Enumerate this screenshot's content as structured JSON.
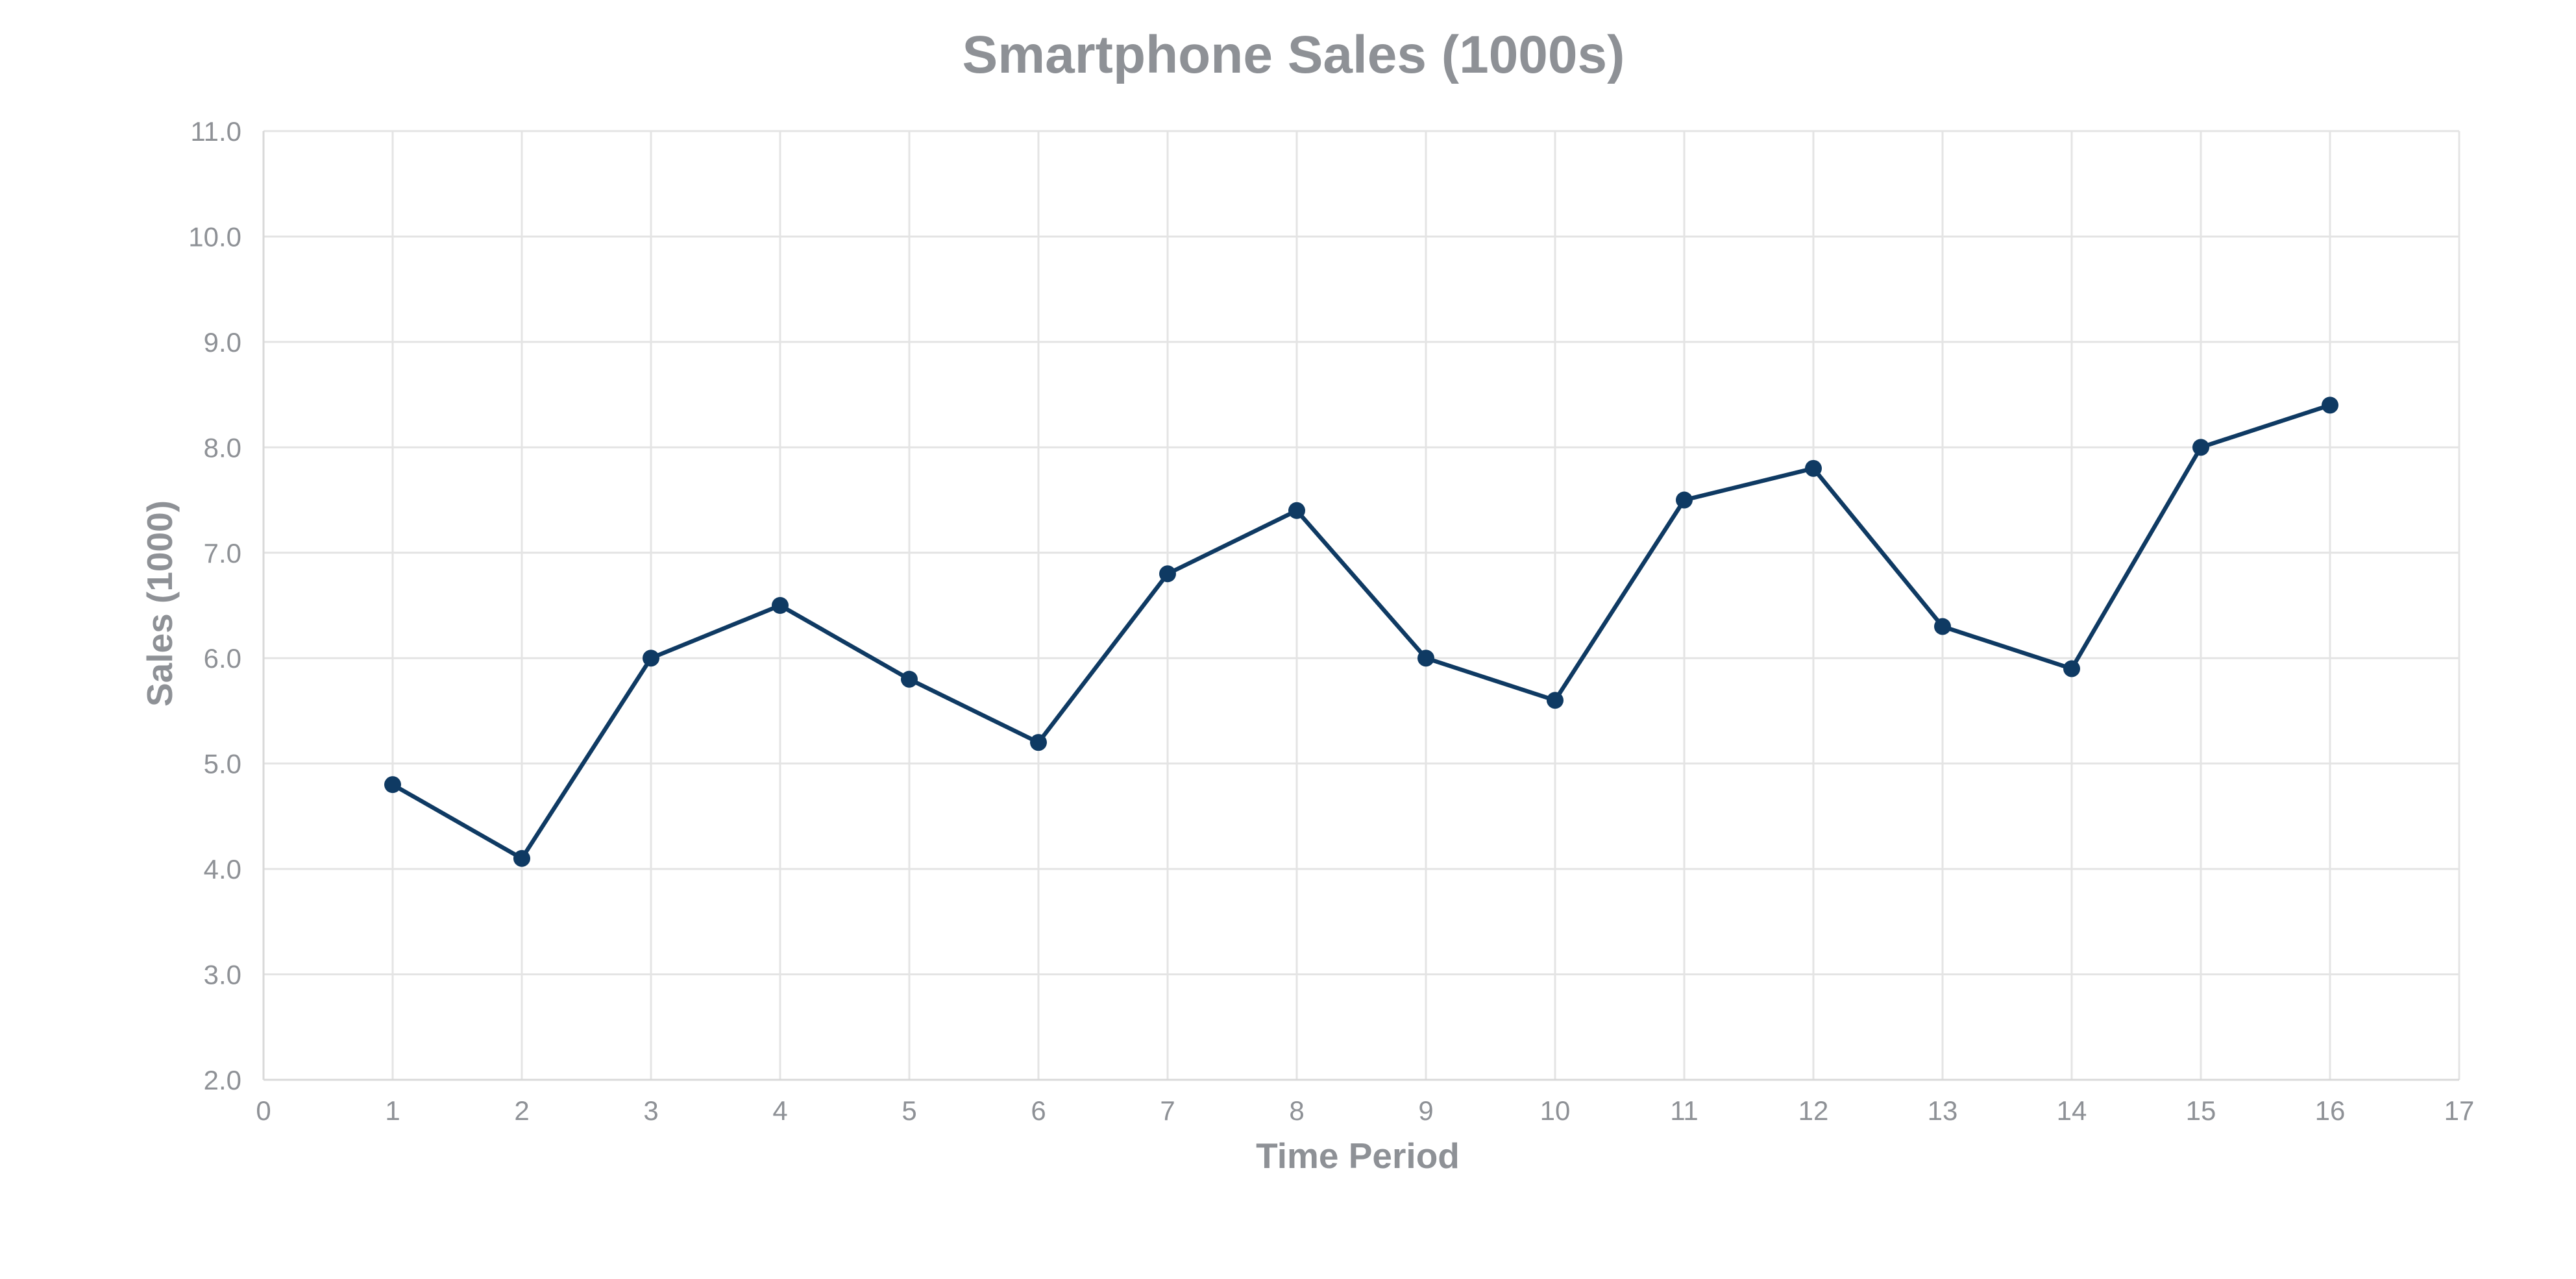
{
  "chart_data": {
    "type": "line",
    "title": "Smartphone Sales (1000s)",
    "xlabel": "Time Period",
    "ylabel": "Sales (1000)",
    "xlim": [
      0,
      17
    ],
    "ylim": [
      2,
      11
    ],
    "x_ticks": [
      0,
      1,
      2,
      3,
      4,
      5,
      6,
      7,
      8,
      9,
      10,
      11,
      12,
      13,
      14,
      15,
      16,
      17
    ],
    "y_ticks": [
      "2.0",
      "3.0",
      "4.0",
      "5.0",
      "6.0",
      "7.0",
      "8.0",
      "9.0",
      "10.0",
      "11.0"
    ],
    "grid": true,
    "legend": "none",
    "series": [
      {
        "color": "#0f3a63",
        "x": [
          1,
          2,
          3,
          4,
          5,
          6,
          7,
          8,
          9,
          10,
          11,
          12,
          13,
          14,
          15,
          16
        ],
        "values": [
          4.8,
          4.1,
          6.0,
          6.5,
          5.8,
          5.2,
          6.8,
          7.4,
          6.0,
          5.6,
          7.5,
          7.8,
          6.3,
          5.9,
          8.0,
          8.4
        ]
      }
    ]
  }
}
